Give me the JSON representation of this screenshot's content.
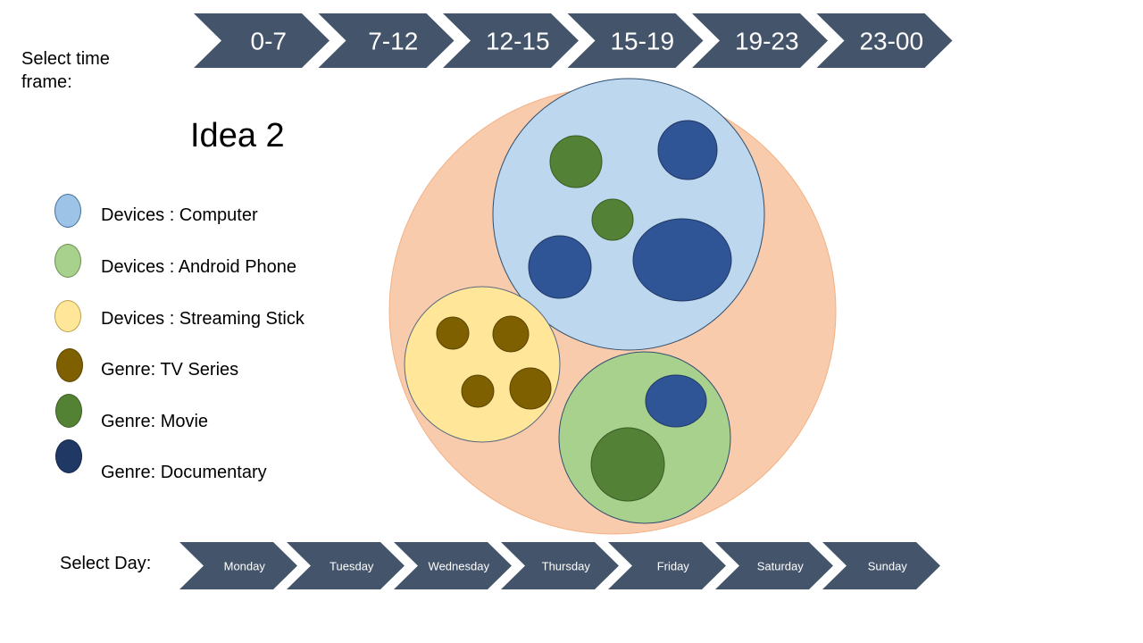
{
  "timeframe": {
    "label": "Select time frame:",
    "label_line1": "Select time",
    "label_line2": "frame:",
    "options": [
      "0-7",
      "7-12",
      "12-15",
      "15-19",
      "19-23",
      "23-00"
    ]
  },
  "title": "Idea 2",
  "legend": [
    {
      "label": "Devices : Computer",
      "color": "#9dc3e6"
    },
    {
      "label": "Devices : Android Phone",
      "color": "#a9d18e"
    },
    {
      "label": "Devices : Streaming Stick",
      "color": "#ffe699"
    },
    {
      "label": "Genre: TV Series",
      "color": "#7f6000"
    },
    {
      "label": "Genre: Movie",
      "color": "#548235"
    },
    {
      "label": "Genre: Documentary",
      "color": "#203864"
    }
  ],
  "day": {
    "label": "Select Day:",
    "options": [
      "Monday",
      "Tuesday",
      "Wednesday",
      "Thursday",
      "Friday",
      "Saturday",
      "Sunday"
    ]
  },
  "colors": {
    "chevron": "#44546a",
    "outer": "#f8cbad",
    "computer": "#bdd7ee",
    "android": "#a9d18e",
    "stick": "#ffe699",
    "tv": "#7f6000",
    "movie": "#538135",
    "doc": "#2f5597"
  }
}
